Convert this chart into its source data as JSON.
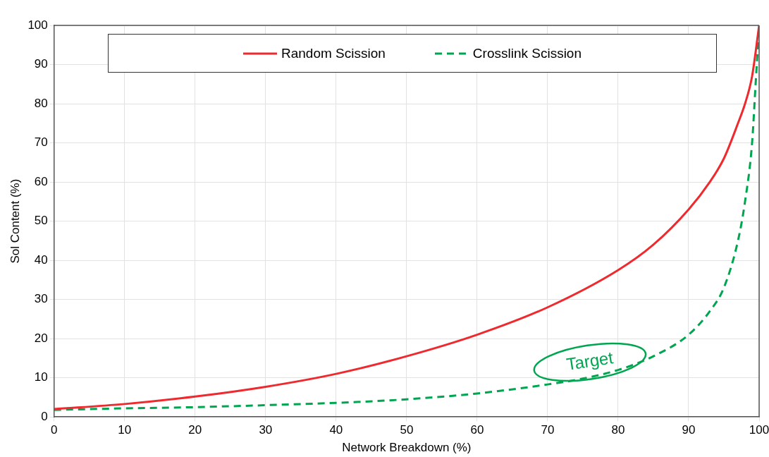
{
  "chart_data": {
    "type": "line",
    "xlabel": "Network Breakdown (%)",
    "ylabel": "Sol Content (%)",
    "xlim": [
      0,
      100
    ],
    "ylim": [
      0,
      100
    ],
    "xticks": [
      0,
      10,
      20,
      30,
      40,
      50,
      60,
      70,
      80,
      90,
      100
    ],
    "yticks": [
      0,
      10,
      20,
      30,
      40,
      50,
      60,
      70,
      80,
      90,
      100
    ],
    "grid": true,
    "legend": "top",
    "marker": "none",
    "annotations": [
      "Target"
    ],
    "series": [
      {
        "name": "Random Scission",
        "color": "#ee2a2e",
        "line_style": "solid",
        "x": [
          0,
          10,
          20,
          30,
          40,
          50,
          60,
          70,
          80,
          85,
          90,
          93,
          95,
          97,
          98,
          99,
          100
        ],
        "values": [
          2,
          3.3,
          5.2,
          7.7,
          11,
          15.5,
          21,
          28,
          37.5,
          44,
          53,
          60,
          66,
          75,
          80,
          87,
          100
        ]
      },
      {
        "name": "Crosslink Scission",
        "color": "#00a550",
        "line_style": "dashed",
        "x": [
          0,
          10,
          20,
          30,
          40,
          50,
          60,
          70,
          75,
          80,
          85,
          90,
          93,
          95,
          97,
          98,
          99,
          99.5,
          100
        ],
        "values": [
          1.8,
          2.2,
          2.5,
          3,
          3.6,
          4.5,
          6,
          8.3,
          9.8,
          12,
          15.5,
          21,
          27,
          33,
          45,
          55,
          70,
          85,
          100
        ]
      }
    ]
  }
}
